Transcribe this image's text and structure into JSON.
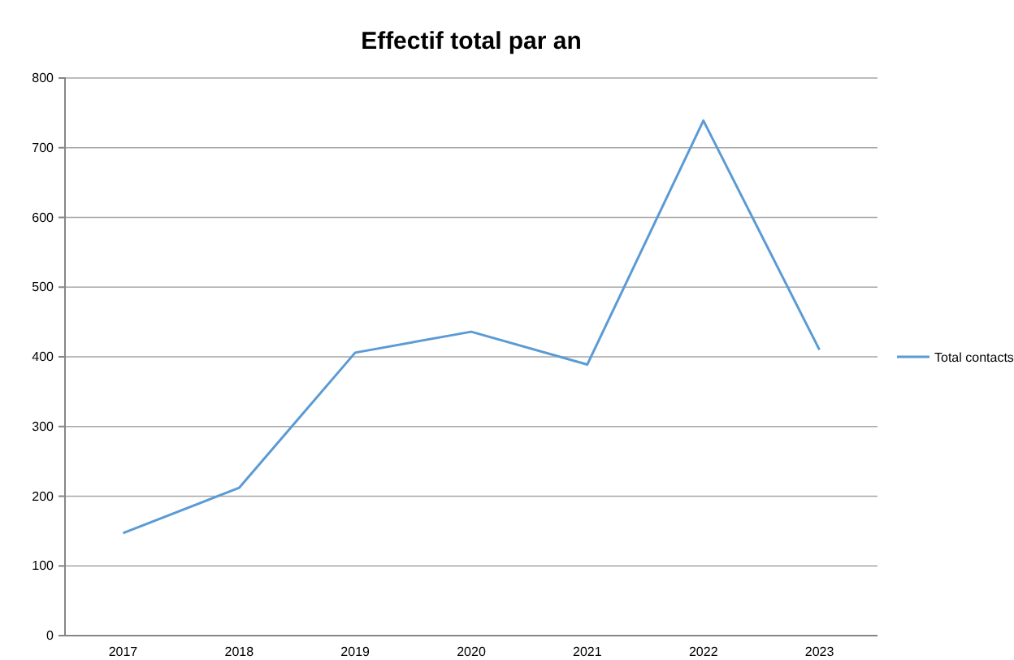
{
  "chart_data": {
    "type": "line",
    "title": "Effectif total par an",
    "categories": [
      "2017",
      "2018",
      "2019",
      "2020",
      "2021",
      "2022",
      "2023"
    ],
    "series": [
      {
        "name": "Total contacts",
        "color": "#5b9bd5",
        "values": [
          147,
          212,
          406,
          436,
          389,
          739,
          410
        ]
      }
    ],
    "ylim": [
      0,
      800
    ],
    "yticks": [
      0,
      100,
      200,
      300,
      400,
      500,
      600,
      700,
      800
    ],
    "grid": "y",
    "legend": "right",
    "marker": "none",
    "line_style": "solid"
  }
}
